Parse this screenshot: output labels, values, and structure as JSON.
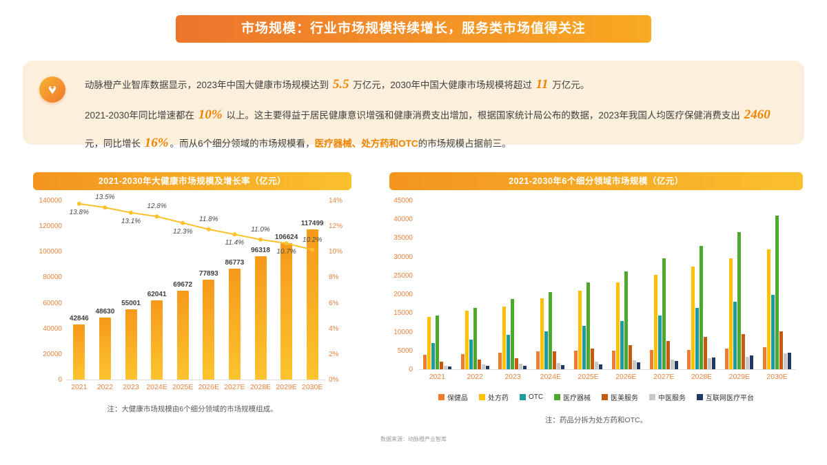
{
  "header": {
    "title": "市场规模：行业市场规模持续增长，服务类市场值得关注"
  },
  "summary": {
    "icon": "heart-plus-icon",
    "paragraphs": [
      [
        {
          "t": "动脉橙产业智库数据显示，2023年中国大健康市场规模达到 ",
          "s": ""
        },
        {
          "t": "5.5",
          "s": "num"
        },
        {
          "t": " 万亿元，2030年中国大健康市场规模将超过 ",
          "s": ""
        },
        {
          "t": "11",
          "s": "num"
        },
        {
          "t": " 万亿元。",
          "s": ""
        }
      ],
      [
        {
          "t": "2021-2030年同比增速都在 ",
          "s": ""
        },
        {
          "t": "10%",
          "s": "num"
        },
        {
          "t": " 以上。这主要得益于居民健康意识增强和健康消费支出增加，根据国家统计局公布的数据，2023年我国人均医疗保健消费支出 ",
          "s": ""
        },
        {
          "t": "2460",
          "s": "num"
        },
        {
          "t": " 元，同比增长 ",
          "s": ""
        },
        {
          "t": "16%",
          "s": "num"
        },
        {
          "t": "。而从6个细分领域的市场规模看，",
          "s": ""
        },
        {
          "t": "医疗器械、处方药和OTC",
          "s": "orange"
        },
        {
          "t": "的市场规模占据前三。",
          "s": ""
        }
      ]
    ]
  },
  "chart_data": [
    {
      "type": "bar+line",
      "title": "2021-2030年大健康市场规模及增长率（亿元）",
      "categories": [
        "2021",
        "2022",
        "2023",
        "2024E",
        "2025E",
        "2026E",
        "2027E",
        "2028E",
        "2029E",
        "2030E"
      ],
      "bar_series": {
        "name": "大健康市场规模",
        "values": [
          42846,
          48630,
          55001,
          62041,
          69672,
          77893,
          86773,
          96318,
          106624,
          117499
        ]
      },
      "line_series": {
        "name": "增长率",
        "values_pct": [
          13.8,
          13.5,
          13.1,
          12.8,
          12.3,
          11.8,
          11.4,
          11.0,
          10.7,
          10.2
        ],
        "color": "#fcc12b"
      },
      "y_left": {
        "min": 0,
        "max": 140000,
        "ticks": [
          0,
          20000,
          40000,
          60000,
          80000,
          100000,
          120000,
          140000
        ]
      },
      "y_right": {
        "min": 0,
        "max": 14,
        "ticks": [
          "0%",
          "2%",
          "4%",
          "6%",
          "8%",
          "10%",
          "12%",
          "14%"
        ]
      },
      "bar_color_top": "#f6991b",
      "bar_color_bottom": "#fcc42e",
      "grid": false,
      "note": "注：大健康市场规模由6个细分领域的市场规模组成。"
    },
    {
      "type": "grouped-bar",
      "title": "2021-2030年6个细分领域市场规模（亿元）",
      "categories": [
        "2021",
        "2022",
        "2023",
        "2024E",
        "2025E",
        "2026E",
        "2027E",
        "2028E",
        "2029E",
        "2030E"
      ],
      "y": {
        "min": 0,
        "max": 45000,
        "ticks": [
          0,
          5000,
          10000,
          15000,
          20000,
          25000,
          30000,
          35000,
          40000,
          45000
        ]
      },
      "series": [
        {
          "name": "保健品",
          "color": "#ED7D31",
          "values": [
            3900,
            4100,
            4400,
            4700,
            4900,
            5000,
            5100,
            5200,
            5500,
            5800
          ]
        },
        {
          "name": "处方药",
          "color": "#FFC000",
          "values": [
            14000,
            15600,
            16800,
            19000,
            21000,
            23100,
            25200,
            27300,
            29600,
            32000
          ]
        },
        {
          "name": "OTC",
          "color": "#1C9C9C",
          "values": [
            7000,
            7900,
            9100,
            10100,
            11600,
            12900,
            14300,
            16300,
            18000,
            19900
          ]
        },
        {
          "name": "医疗器械",
          "color": "#4EA72E",
          "values": [
            14400,
            16400,
            18800,
            20600,
            23200,
            26100,
            29500,
            32800,
            36600,
            41000
          ]
        },
        {
          "name": "医美服务",
          "color": "#C55A11",
          "values": [
            2000,
            2500,
            2900,
            4800,
            5600,
            6500,
            7600,
            8700,
            9400,
            10100
          ]
        },
        {
          "name": "中医服务",
          "color": "#C8C8C8",
          "values": [
            900,
            1200,
            1500,
            1700,
            2000,
            2300,
            2600,
            2900,
            3300,
            4300
          ]
        },
        {
          "name": "互联网医疗平台",
          "color": "#1F3864",
          "values": [
            650,
            830,
            1000,
            1140,
            1370,
            1900,
            2170,
            3120,
            3720,
            4400
          ]
        }
      ],
      "grid": false,
      "legend_position": "bottom",
      "note": "注：药品分拆为处方药和OTC。"
    }
  ],
  "footer": {
    "source": "数据来源：动脉橙产业智库"
  },
  "colors": {
    "banner_gradient_left": "#ec752c",
    "banner_gradient_right": "#f9a922",
    "summary_bg": "#fcf0dd",
    "accent_orange": "#f08300",
    "axis_label_orange": "#e8823c"
  }
}
